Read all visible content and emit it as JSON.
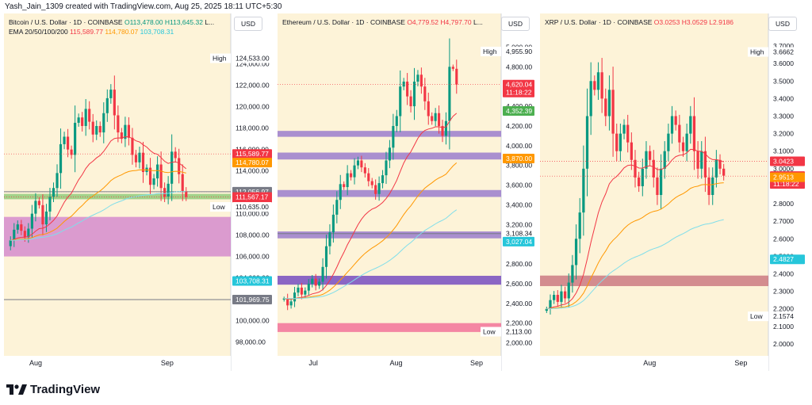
{
  "header": {
    "created_by": "Yash_Jain_1309 created with TradingView.com, Aug 25, 2025 18:11 UTC+5:30"
  },
  "footer": {
    "brand": "TradingView"
  },
  "labels": {
    "currency": "USD",
    "high": "High",
    "low": "Low"
  },
  "chart_data": [
    {
      "type": "candlestick",
      "symbol_title": "Bitcoin / U.S. Dollar · 1D · COINBASE",
      "ohlc": {
        "open": "O113,478.00",
        "high": "H113,645.32",
        "low": "L..."
      },
      "ema_label": "EMA 20/50/100/200",
      "ema_values": [
        "115,589.77",
        "114,780.07",
        "103,708.31"
      ],
      "ylim": [
        97000,
        126500
      ],
      "y_ticks": [
        "124,000.00",
        "122,000.00",
        "120,000.00",
        "118,000.00",
        "116,000.00",
        "114,000.00",
        "112,000.00",
        "110,000.00",
        "108,000.00",
        "106,000.00",
        "104,000.00",
        "102,000.00",
        "100,000.00",
        "98,000.00"
      ],
      "x_ticks": [
        "Aug",
        "Sep"
      ],
      "closes": [
        107500,
        108500,
        109000,
        108400,
        107800,
        108600,
        110000,
        111200,
        110800,
        109000,
        110200,
        111600,
        112400,
        113800,
        116500,
        117200,
        116000,
        115500,
        118500,
        119000,
        118200,
        119800,
        118600,
        117400,
        118200,
        117600,
        119400,
        120800,
        121600,
        119200,
        117600,
        117000,
        118300,
        117100,
        115500,
        114800,
        115700,
        113900,
        114300,
        112700,
        113300,
        114600,
        112400,
        111600,
        112800,
        115800,
        115200,
        113700,
        112100,
        111567
      ],
      "price_tags": [
        {
          "label": "High",
          "value": "124,533.00",
          "type": "high"
        },
        {
          "value": "115,589.77",
          "type": "red"
        },
        {
          "value": "114,780.07",
          "type": "orange"
        },
        {
          "value": "112,056.97",
          "type": "gray"
        },
        {
          "value": "111,567.17",
          "sub": "11:18:23",
          "type": "red"
        },
        {
          "label": "Low",
          "value": "110,635.00",
          "type": "low"
        },
        {
          "value": "103,708.31",
          "type": "cyan"
        },
        {
          "value": "101,969.75",
          "type": "gray"
        }
      ]
    },
    {
      "type": "candlestick",
      "symbol_title": "Ethereum / U.S. Dollar · 1D · COINBASE",
      "ohlc": {
        "open": "O4,779.52",
        "high": "H4,797.70",
        "low": "L..."
      },
      "ylim": [
        1900,
        5100
      ],
      "y_ticks": [
        "5,000.00",
        "4,800.00",
        "4,400.00",
        "4,200.00",
        "4,000.00",
        "3,800.00",
        "3,600.00",
        "3,400.00",
        "3,200.00",
        "2,800.00",
        "2,600.00",
        "2,400.00",
        "2,200.00",
        "2,000.00"
      ],
      "x_ticks": [
        "Jul",
        "Aug",
        "Sep"
      ],
      "closes": [
        2450,
        2380,
        2420,
        2510,
        2560,
        2490,
        2530,
        2600,
        2650,
        2580,
        2620,
        2770,
        2980,
        3120,
        3300,
        3450,
        3610,
        3580,
        3720,
        3680,
        3800,
        3850,
        3780,
        3720,
        3640,
        3600,
        3510,
        3620,
        3700,
        3850,
        3980,
        4200,
        4300,
        4600,
        4650,
        4500,
        4400,
        4650,
        4720,
        4600,
        4450,
        4300,
        4250,
        4330,
        4200,
        4100,
        4250,
        4800,
        4780,
        4620
      ],
      "price_tags": [
        {
          "label": "High",
          "value": "4,955.90",
          "type": "high"
        },
        {
          "value": "4,620.04",
          "sub": "11:18:22",
          "type": "red"
        },
        {
          "value": "4,352.39",
          "type": "green"
        },
        {
          "value": "3,870.00",
          "type": "orange"
        },
        {
          "value": "3,108.34",
          "type": "white"
        },
        {
          "value": "3,027.04",
          "type": "cyan"
        },
        {
          "label": "Low",
          "value": "2,113.00",
          "type": "low"
        }
      ]
    },
    {
      "type": "candlestick",
      "symbol_title": "XRP / U.S. Dollar · 1D · COINBASE",
      "ohlc": {
        "open": "O3.0253",
        "high": "H3.0529",
        "low": "L2.9186"
      },
      "ylim": [
        1.95,
        3.75
      ],
      "y_ticks": [
        "3.7000",
        "3.6000",
        "3.5000",
        "3.4000",
        "3.3000",
        "3.2000",
        "3.1000",
        "3.0000",
        "2.9000",
        "2.8000",
        "2.7000",
        "2.6000",
        "2.5000",
        "2.4000",
        "2.3000",
        "2.2000",
        "2.1000",
        "2.0000"
      ],
      "x_ticks": [
        "Aug",
        "Sep"
      ],
      "closes": [
        2.2,
        2.25,
        2.28,
        2.24,
        2.3,
        2.26,
        2.35,
        2.45,
        2.6,
        2.75,
        3.0,
        3.3,
        3.5,
        3.45,
        3.55,
        3.4,
        3.3,
        3.45,
        3.2,
        3.1,
        3.2,
        3.25,
        3.15,
        3.05,
        2.95,
        2.9,
        3.0,
        3.1,
        3.05,
        2.95,
        2.85,
        3.0,
        3.1,
        3.2,
        3.3,
        3.25,
        3.15,
        3.1,
        3.2,
        3.3,
        3.1,
        3.0,
        3.1,
        2.95,
        2.85,
        2.95,
        3.05,
        3.0,
        2.96
      ],
      "price_tags": [
        {
          "label": "High",
          "value": "3.6662",
          "type": "high"
        },
        {
          "value": "3.0423",
          "type": "red"
        },
        {
          "value": "2.9578",
          "sub": "11:18:22",
          "type": "red"
        },
        {
          "value": "2.9513",
          "type": "orange"
        },
        {
          "value": "2.4827",
          "type": "cyan"
        },
        {
          "label": "Low",
          "value": "2.1574",
          "type": "low"
        }
      ]
    }
  ],
  "colors": {
    "up": "#089981",
    "down": "#f23645",
    "bg": "#fdf3d8",
    "zone_purple": "#9c27b0",
    "zone_red": "#e57373",
    "zone_green": "#81c784"
  }
}
